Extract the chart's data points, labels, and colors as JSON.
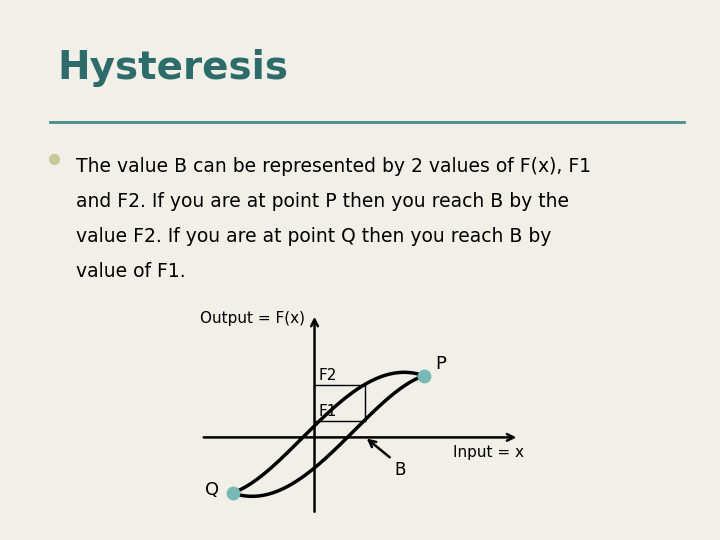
{
  "title": "Hysteresis",
  "title_color": "#2e6b6b",
  "title_fontsize": 28,
  "bg_color": "#f0f0e8",
  "border_color": "#4a8a8a",
  "bullet_text_line1": "The value B can be represented by 2 values of F(x), F1",
  "bullet_text_line2": "and F2. If you are at point P then you reach B by the",
  "bullet_text_line3": "value F2. If you are at point Q then you reach B by",
  "bullet_text_line4": "value of F1.",
  "bullet_color": "#c8c89a",
  "text_color": "#000000",
  "text_fontsize": 13.5,
  "curve_color": "#000000",
  "dot_color": "#7ab8b8",
  "label_color": "#000000",
  "axis_color": "#000000",
  "divider_color": "#4a8a8a",
  "line_color": "#000000"
}
